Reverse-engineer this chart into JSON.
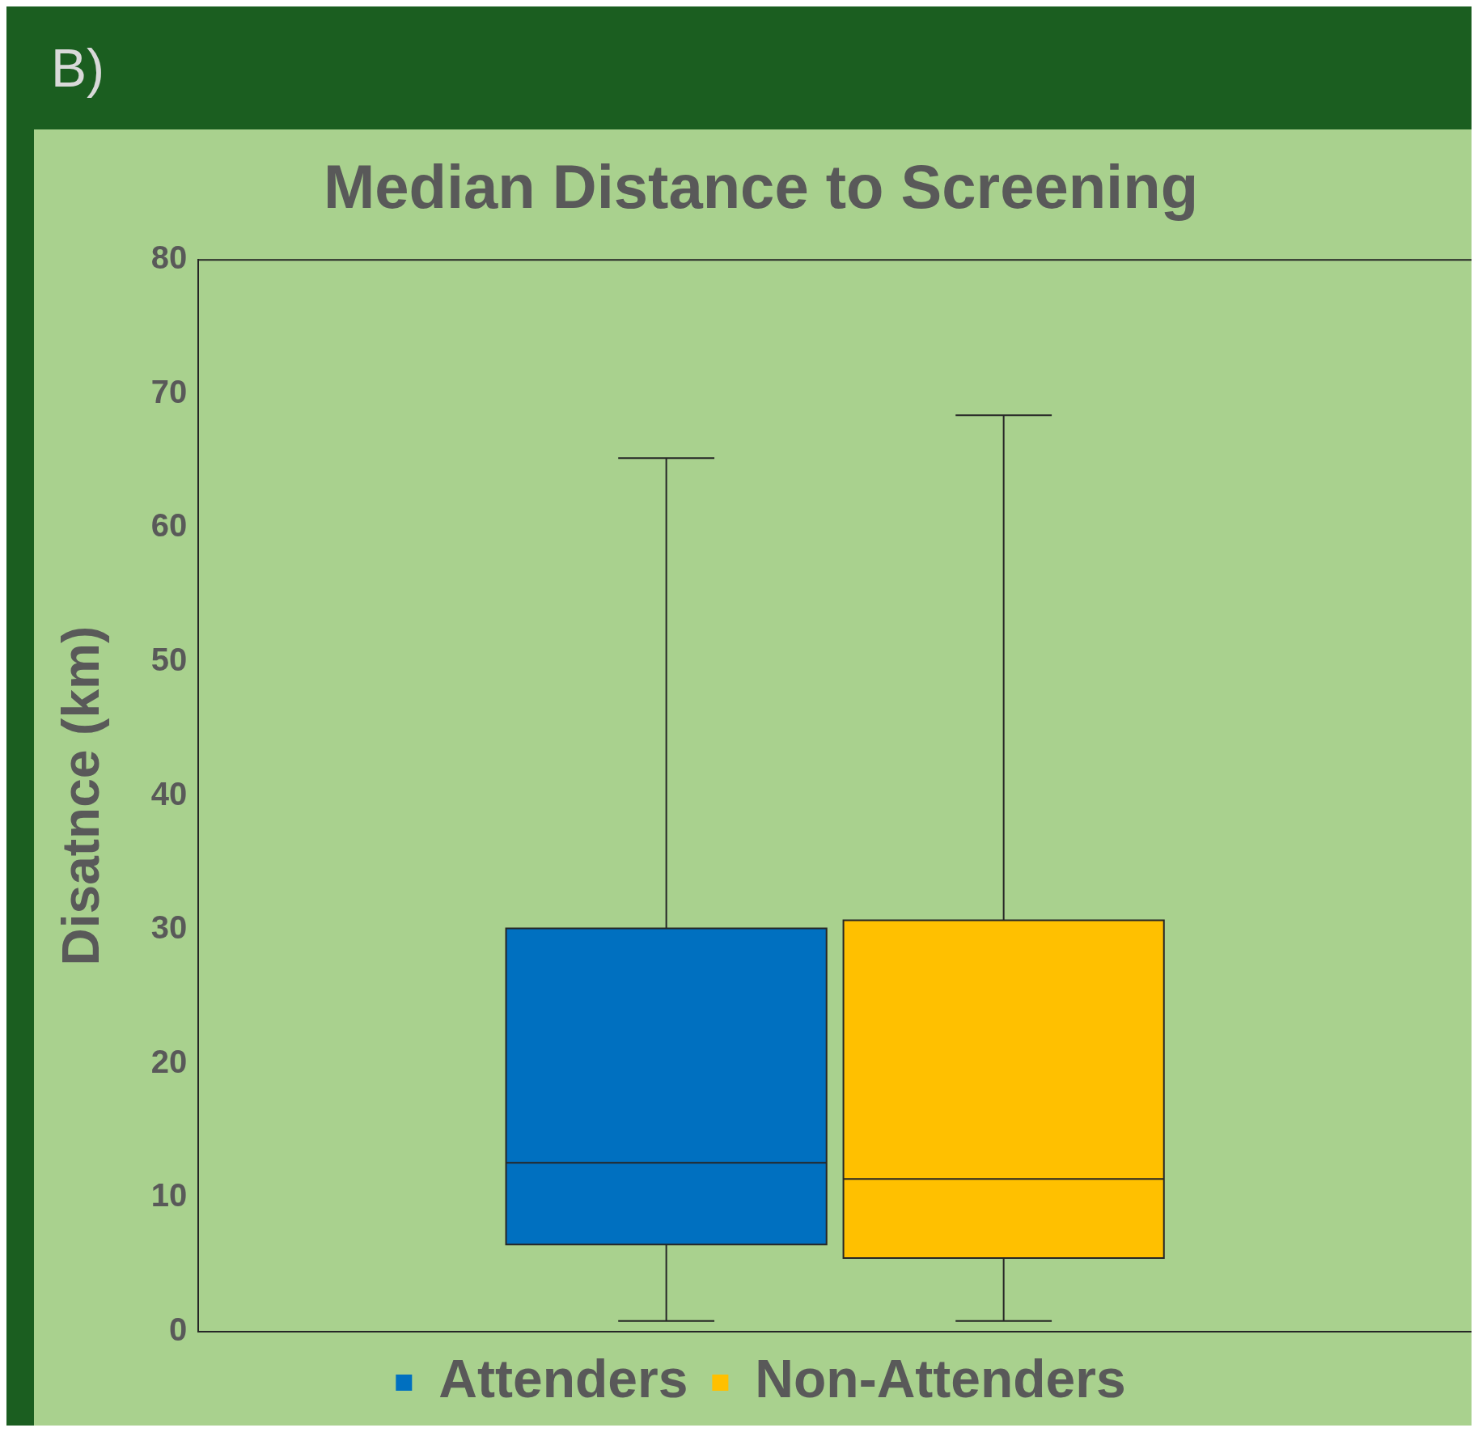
{
  "chart_data": {
    "type": "box",
    "title": "Median Distance to Screening",
    "ylabel": "Disatnce (km)",
    "annotations": [
      "B)"
    ],
    "categories": [
      null
    ],
    "series": [
      {
        "name": "Attenders",
        "color": "#0070c0",
        "boxes": [
          {
            "low": 0.8,
            "q1": 6.5,
            "median": 12.6,
            "q3": 30.1,
            "high": 65.2
          }
        ]
      },
      {
        "name": "Non-Attenders",
        "color": "#ffc000",
        "boxes": [
          {
            "low": 0.8,
            "q1": 5.5,
            "median": 11.4,
            "q3": 30.7,
            "high": 68.4
          }
        ]
      }
    ],
    "ylim": [
      0,
      80
    ],
    "yticks": [
      0,
      10,
      20,
      30,
      40,
      50,
      60,
      70,
      80
    ],
    "grid": false,
    "legend": "bottom",
    "tick_labels": "y"
  }
}
